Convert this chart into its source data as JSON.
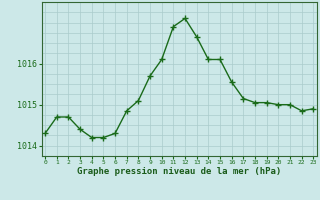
{
  "hours": [
    0,
    1,
    2,
    3,
    4,
    5,
    6,
    7,
    8,
    9,
    10,
    11,
    12,
    13,
    14,
    15,
    16,
    17,
    18,
    19,
    20,
    21,
    22,
    23
  ],
  "pressure": [
    1014.3,
    1014.7,
    1014.7,
    1014.4,
    1014.2,
    1014.2,
    1014.3,
    1014.85,
    1015.1,
    1015.7,
    1016.1,
    1016.9,
    1017.1,
    1016.65,
    1016.1,
    1016.1,
    1015.55,
    1015.15,
    1015.05,
    1015.05,
    1015.0,
    1015.0,
    1014.85,
    1014.9
  ],
  "line_color": "#1a6b1a",
  "marker_color": "#1a6b1a",
  "bg_color": "#cce8e8",
  "grid_color": "#aacccc",
  "xlabel": "Graphe pression niveau de la mer (hPa)",
  "xlabel_color": "#1a5c1a",
  "axis_color": "#336633",
  "tick_color": "#1a6b1a",
  "ylim": [
    1013.75,
    1017.5
  ],
  "yticks": [
    1014,
    1015,
    1016
  ],
  "xlim": [
    -0.3,
    23.3
  ],
  "figsize": [
    3.2,
    2.0
  ],
  "dpi": 100,
  "grid_yticks": [
    1014.0,
    1014.25,
    1014.5,
    1014.75,
    1015.0,
    1015.25,
    1015.5,
    1015.75,
    1016.0,
    1016.25,
    1016.5,
    1016.75,
    1017.0,
    1017.25
  ]
}
